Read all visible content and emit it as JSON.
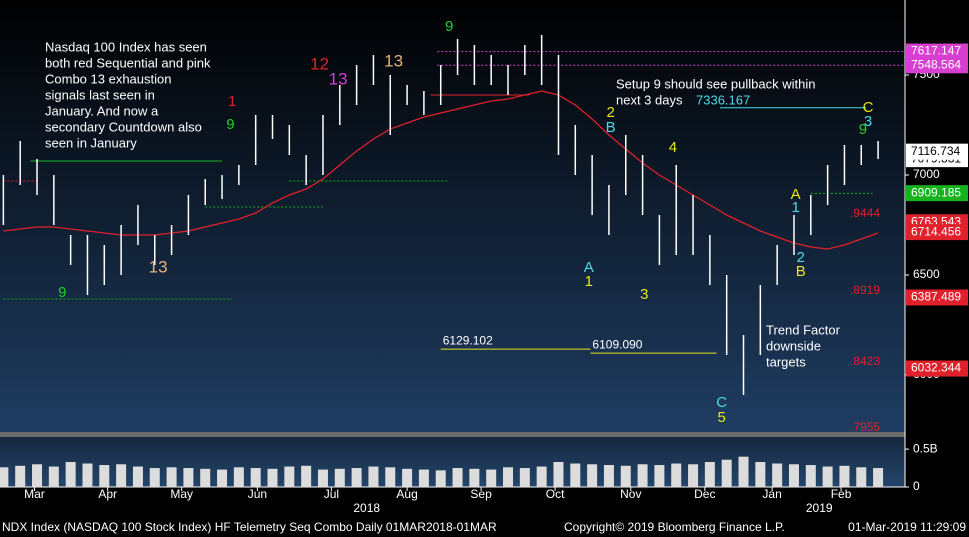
{
  "chart_data": {
    "type": "range",
    "bar_color": "#ffffff",
    "ma_color": "#e0212b",
    "x": [
      0,
      1,
      2,
      3,
      4,
      5,
      6,
      7,
      8,
      9,
      10,
      11,
      12,
      13,
      14,
      15,
      16,
      17,
      18,
      19,
      20,
      21,
      22,
      23,
      24,
      25,
      26,
      27,
      28,
      29,
      30,
      31,
      32,
      33,
      34,
      35,
      36,
      37,
      38,
      39,
      40,
      41,
      42,
      43,
      44,
      45,
      46,
      47,
      48,
      49,
      50,
      51,
      52
    ],
    "xlim": [
      -0.2,
      53.6
    ],
    "xticks": [
      {
        "value": 1.85,
        "label": "Mar"
      },
      {
        "value": 6.2,
        "label": "Apr"
      },
      {
        "value": 10.6,
        "label": "May"
      },
      {
        "value": 15.1,
        "label": "Jun"
      },
      {
        "value": 19.5,
        "label": "Jul"
      },
      {
        "value": 24,
        "label": "Aug"
      },
      {
        "value": 28.4,
        "label": "Sep"
      },
      {
        "value": 32.8,
        "label": "Oct"
      },
      {
        "value": 37.3,
        "label": "Nov"
      },
      {
        "value": 41.7,
        "label": "Dec"
      },
      {
        "value": 45.7,
        "label": "Jan"
      },
      {
        "value": 49.8,
        "label": "Feb"
      }
    ],
    "years": [
      {
        "value": 21.6,
        "label": "2018"
      },
      {
        "value": 48.5,
        "label": "2019"
      }
    ],
    "high": [
      7000,
      7170,
      7080,
      7000,
      6700,
      6700,
      6650,
      6750,
      6850,
      6700,
      6750,
      6900,
      6980,
      7000,
      7050,
      7300,
      7300,
      7250,
      7100,
      7300,
      7450,
      7550,
      7600,
      7500,
      7450,
      7420,
      7550,
      7680,
      7650,
      7600,
      7550,
      7650,
      7700,
      7600,
      7250,
      7100,
      6950,
      7200,
      7100,
      6800,
      7050,
      6900,
      6700,
      6500,
      6200,
      6450,
      6650,
      6800,
      6900,
      7050,
      7150,
      7150,
      7170
    ],
    "low": [
      6750,
      6950,
      6900,
      6750,
      6550,
      6400,
      6450,
      6500,
      6650,
      6550,
      6600,
      6700,
      6850,
      6880,
      6950,
      7050,
      7180,
      7100,
      6950,
      7000,
      7250,
      7350,
      7450,
      7200,
      7350,
      7300,
      7350,
      7500,
      7450,
      7450,
      7400,
      7500,
      7450,
      7100,
      7000,
      6800,
      6700,
      6900,
      6800,
      6550,
      6600,
      6600,
      6450,
      6100,
      5900,
      6100,
      6450,
      6600,
      6700,
      6850,
      6950,
      7050,
      7080
    ],
    "ma": [
      6720,
      6730,
      6740,
      6740,
      6730,
      6720,
      6710,
      6700,
      6700,
      6700,
      6710,
      6720,
      6740,
      6760,
      6780,
      6810,
      6860,
      6900,
      6930,
      6980,
      7050,
      7120,
      7180,
      7230,
      7260,
      7290,
      7310,
      7330,
      7350,
      7370,
      7380,
      7400,
      7420,
      7400,
      7350,
      7280,
      7200,
      7130,
      7060,
      7000,
      6950,
      6900,
      6850,
      6800,
      6760,
      6720,
      6690,
      6660,
      6640,
      6630,
      6650,
      6680,
      6710
    ],
    "volume": [
      0.26,
      0.28,
      0.3,
      0.27,
      0.33,
      0.31,
      0.29,
      0.3,
      0.27,
      0.25,
      0.26,
      0.25,
      0.24,
      0.23,
      0.26,
      0.25,
      0.24,
      0.27,
      0.28,
      0.23,
      0.24,
      0.25,
      0.27,
      0.26,
      0.24,
      0.23,
      0.22,
      0.25,
      0.24,
      0.23,
      0.26,
      0.25,
      0.27,
      0.33,
      0.31,
      0.3,
      0.29,
      0.28,
      0.3,
      0.29,
      0.31,
      0.3,
      0.33,
      0.36,
      0.4,
      0.33,
      0.31,
      0.3,
      0.29,
      0.27,
      0.28,
      0.26,
      0.25
    ],
    "volume_ylim": [
      0,
      0.66
    ],
    "volume_yticks": [
      {
        "value": 0.5,
        "label": "0.5B"
      },
      0
    ],
    "ylim": [
      5715,
      7875
    ],
    "yticks": [
      7500,
      7000,
      6500,
      6000
    ],
    "right_labels": [
      {
        "value": 7617.147,
        "color": "#d63fd0"
      },
      {
        "value": 7548.564,
        "color": "#d63fd0"
      },
      {
        "value": 7079.331,
        "color": "#ffffff"
      },
      {
        "value": 7116.734,
        "color": "#ffffff"
      },
      {
        "value": 6909.185,
        "color": "#15b31d"
      },
      {
        "value": 6763.543,
        "color": "#e0212b"
      },
      {
        "value": 6714.456,
        "color": "#e0212b"
      },
      {
        "value": 6387.489,
        "color": "#e0212b"
      },
      {
        "value": 6032.344,
        "color": "#e0212b"
      }
    ],
    "fib_labels": [
      {
        "value": 6805,
        "label": ".9444"
      },
      {
        "value": 6420,
        "label": ".8919"
      },
      {
        "value": 6065,
        "label": ".8423"
      },
      {
        "value": 5735,
        "label": ".7955"
      }
    ],
    "levels": [
      {
        "value": 7617.147,
        "from": 25.8,
        "to": 53.6,
        "color": "#d63fd0",
        "dash": "2,2"
      },
      {
        "value": 7548.564,
        "from": 25.8,
        "to": 53.6,
        "color": "#d63fd0",
        "dash": "2,2"
      },
      {
        "value": 7336.167,
        "from": 42.6,
        "to": 51.3,
        "color": "#4fd8e8",
        "dash": "none"
      },
      {
        "value": 7400,
        "from": 25.4,
        "to": 31.3,
        "color": "#e0212b",
        "dash": "none"
      },
      {
        "value": 6129.102,
        "from": 26,
        "to": 34.9,
        "color": "#e6e61e",
        "dash": "none",
        "label": "6129.102"
      },
      {
        "value": 6109.09,
        "from": 34.9,
        "to": 42.4,
        "color": "#e6e61e",
        "dash": "none",
        "label": "6109.090"
      },
      {
        "value": 7070,
        "from": 1.6,
        "to": 13,
        "color": "#15b31d",
        "dash": "none"
      },
      {
        "value": 6380,
        "from": 0,
        "to": 13.6,
        "color": "#15b31d",
        "dash": "2,2"
      },
      {
        "value": 6840,
        "from": 12,
        "to": 19,
        "color": "#15b31d",
        "dash": "2,2"
      },
      {
        "value": 6970,
        "from": 17,
        "to": 26.5,
        "color": "#15b31d",
        "dash": "2,2"
      },
      {
        "value": 6970,
        "from": 0,
        "to": 2,
        "color": "#e0212b",
        "dash": "2,2"
      },
      {
        "value": 6908,
        "from": 48,
        "to": 51.8,
        "color": "#15b31d",
        "dash": "2,2"
      }
    ],
    "annotations": [
      {
        "x": 3.5,
        "y": 6410,
        "text": "9",
        "color": "#21d12b"
      },
      {
        "x": 9.2,
        "y": 6535,
        "text": "13",
        "color": "#e3b27a"
      },
      {
        "x": 13.5,
        "y": 7250,
        "text": "9",
        "color": "#21d12b"
      },
      {
        "x": 13.6,
        "y": 7365,
        "text": "1",
        "color": "#e0212b"
      },
      {
        "x": 18.8,
        "y": 7550,
        "text": "12",
        "color": "#e0212b"
      },
      {
        "x": 19.9,
        "y": 7475,
        "text": "13",
        "color": "#d63fd0"
      },
      {
        "x": 23.2,
        "y": 7565,
        "text": "13",
        "color": "#e3b27a"
      },
      {
        "x": 26.5,
        "y": 7740,
        "text": "9",
        "color": "#21d12b"
      },
      {
        "x": 36.1,
        "y": 7310,
        "text": "2",
        "color": "#e6e61e"
      },
      {
        "x": 36.1,
        "y": 7235,
        "text": "B",
        "color": "#4fd8e8"
      },
      {
        "x": 39.8,
        "y": 7135,
        "text": "4",
        "color": "#e6e61e"
      },
      {
        "x": 34.8,
        "y": 6535,
        "text": "A",
        "color": "#4fd8e8"
      },
      {
        "x": 34.8,
        "y": 6465,
        "text": "1",
        "color": "#e6e61e"
      },
      {
        "x": 38.1,
        "y": 6400,
        "text": "3",
        "color": "#e6e61e"
      },
      {
        "x": 42.7,
        "y": 5860,
        "text": "C",
        "color": "#4fd8e8"
      },
      {
        "x": 42.7,
        "y": 5785,
        "text": "5",
        "color": "#e6e61e"
      },
      {
        "x": 47.1,
        "y": 6900,
        "text": "A",
        "color": "#e6e61e"
      },
      {
        "x": 47.1,
        "y": 6835,
        "text": "1",
        "color": "#4fd8e8"
      },
      {
        "x": 47.4,
        "y": 6585,
        "text": "2",
        "color": "#4fd8e8"
      },
      {
        "x": 47.4,
        "y": 6515,
        "text": "B",
        "color": "#e6e61e"
      },
      {
        "x": 51.1,
        "y": 7225,
        "text": "9",
        "color": "#21d12b"
      },
      {
        "x": 51.4,
        "y": 7265,
        "text": "3",
        "color": "#4fd8e8"
      },
      {
        "x": 51.4,
        "y": 7335,
        "text": "C",
        "color": "#e6e61e"
      }
    ],
    "notes": {
      "left": [
        "Nasdaq 100 Index has seen",
        "both red Sequential and pink",
        "Combo 13 exhaustion",
        "signals last seen in",
        "January.  And now a",
        "secondary Countdown also",
        "seen in January"
      ],
      "setup": [
        "Setup 9 should see pullback within",
        "next 3 days"
      ],
      "setup_level": "7336.167",
      "trend": [
        "Trend Factor",
        "downside",
        "targets"
      ]
    },
    "footer": {
      "left": "NDX Index (NASDAQ 100 Stock Index) HF Telemetry Seq Combo  Daily 01MAR2018-01MAR",
      "center": "Copyright© 2019 Bloomberg Finance L.P.",
      "right": "01-Mar-2019 11:29:09"
    }
  }
}
